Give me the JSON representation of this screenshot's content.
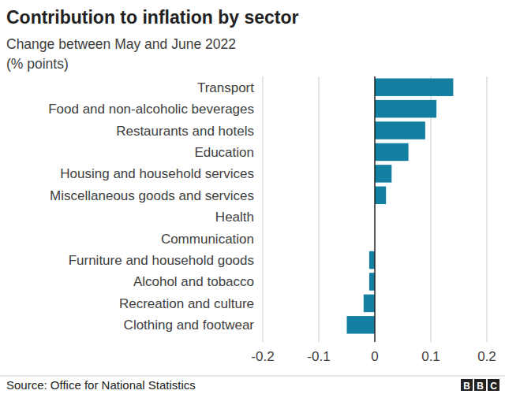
{
  "chart_data": {
    "type": "bar",
    "orientation": "horizontal",
    "title": "Contribution to inflation by sector",
    "subtitle": "Change between May and June 2022",
    "xlabel": "(% points)",
    "source": "Source: Office for National Statistics",
    "logo": "BBC",
    "categories": [
      "Transport",
      "Food and non-alcoholic beverages",
      "Restaurants and hotels",
      "Education",
      "Housing and household services",
      "Miscellaneous goods and services",
      "Health",
      "Communication",
      "Furniture and household goods",
      "Alcohol and tobacco",
      "Recreation and culture",
      "Clothing and footwear"
    ],
    "values": [
      0.14,
      0.11,
      0.09,
      0.06,
      0.03,
      0.02,
      0,
      0,
      -0.01,
      -0.01,
      -0.02,
      -0.05
    ],
    "color": "#1380a1",
    "xlim": [
      -0.2,
      0.2
    ],
    "xticks": [
      -0.2,
      -0.1,
      0,
      0.1,
      0.2
    ],
    "grid": true
  }
}
